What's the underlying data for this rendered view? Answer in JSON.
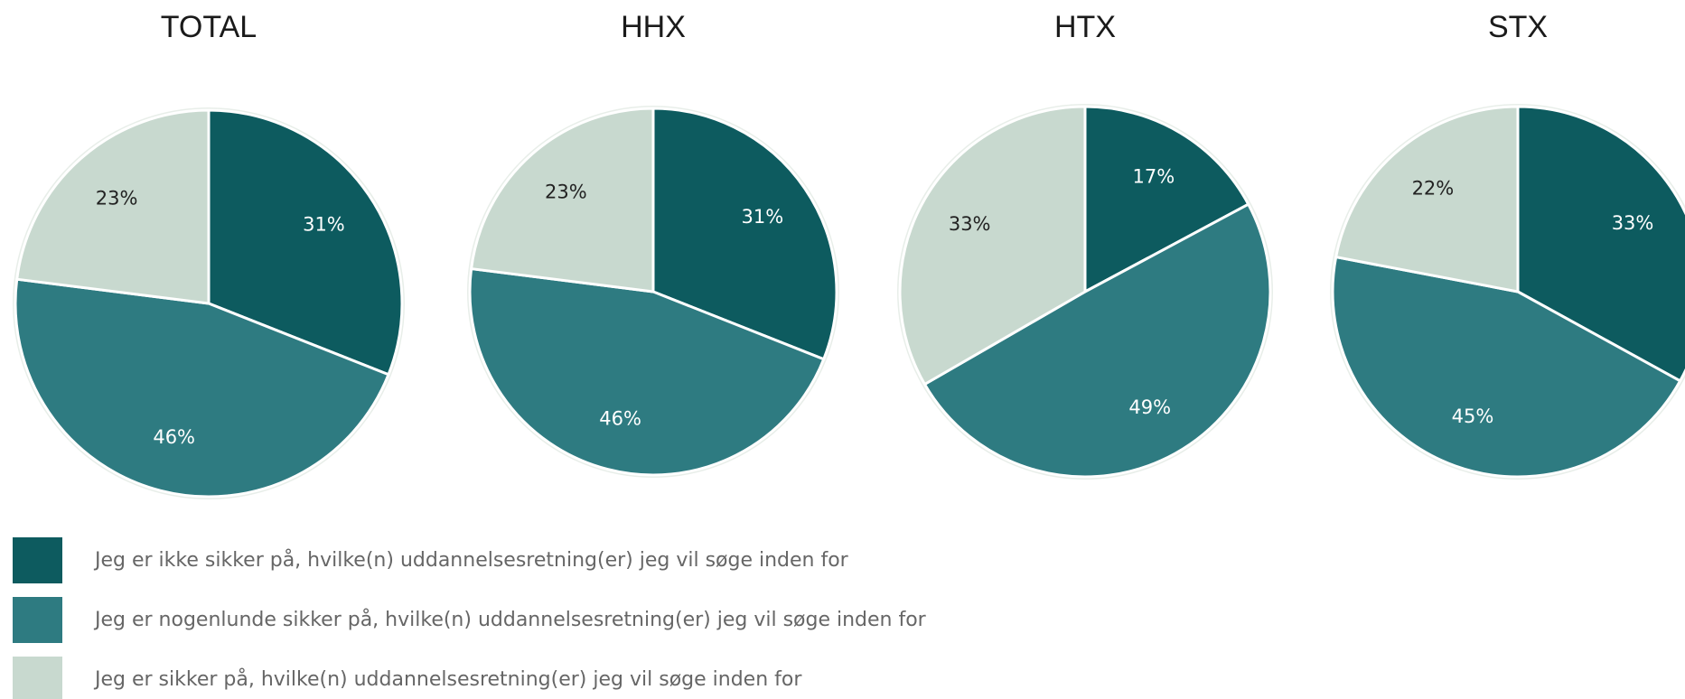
{
  "chart_data": [
    {
      "type": "pie",
      "title": "TOTAL",
      "values": [
        31,
        46,
        23
      ],
      "value_labels": [
        "31%",
        "46%",
        "23%"
      ]
    },
    {
      "type": "pie",
      "title": "HHX",
      "values": [
        31,
        46,
        23
      ],
      "value_labels": [
        "31%",
        "46%",
        "23%"
      ]
    },
    {
      "type": "pie",
      "title": "HTX",
      "values": [
        17,
        49,
        33
      ],
      "value_labels": [
        "17%",
        "49%",
        "33%"
      ]
    },
    {
      "type": "pie",
      "title": "STX",
      "values": [
        33,
        45,
        22
      ],
      "value_labels": [
        "33%",
        "45%",
        "22%"
      ]
    }
  ],
  "legend": {
    "labels": [
      "Jeg er ikke sikker på, hvilke(n) uddannelsesretning(er) jeg vil søge inden for",
      "Jeg er nogenlunde sikker på, hvilke(n) uddannelsesretning(er) jeg vil søge inden for",
      "Jeg er sikker på, hvilke(n) uddannelsesretning(er) jeg vil søge inden for"
    ],
    "colors": [
      "#0d5b5f",
      "#2e7b81",
      "#c8d9cf"
    ]
  }
}
